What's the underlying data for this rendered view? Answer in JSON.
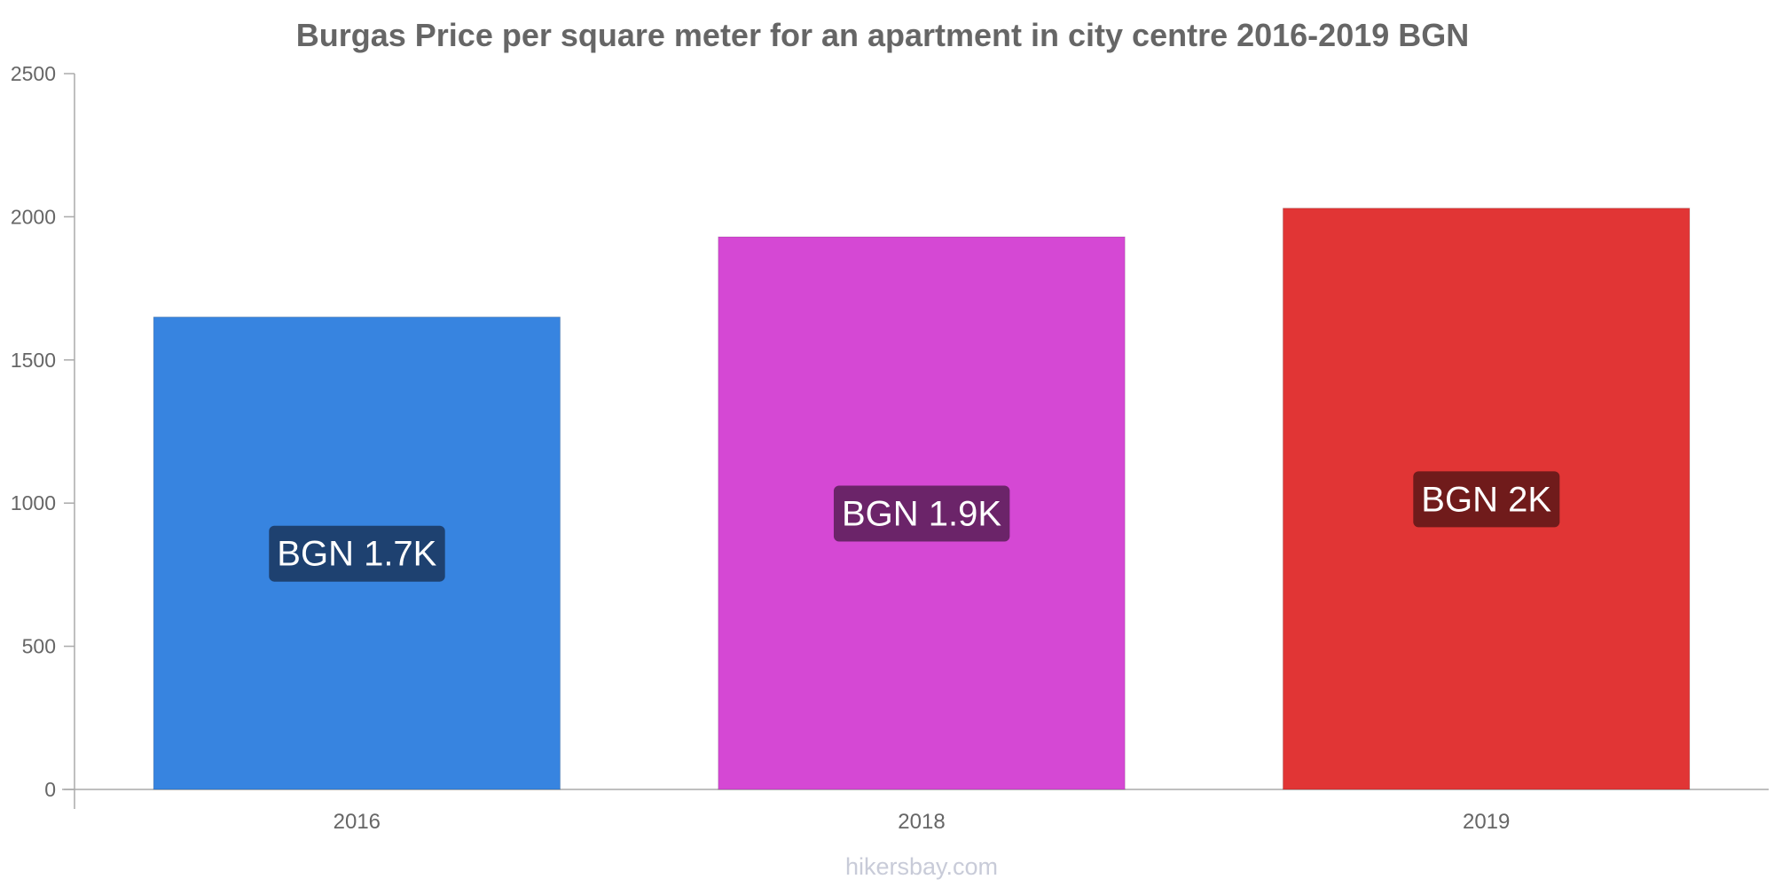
{
  "chart_data": {
    "type": "bar",
    "title": "Burgas Price per square meter for an apartment in city centre 2016-2019 BGN",
    "categories": [
      "2016",
      "2018",
      "2019"
    ],
    "values": [
      1650,
      1930,
      2030
    ],
    "data_labels": [
      "BGN 1.7K",
      "BGN 1.9K",
      "BGN 2K"
    ],
    "bar_colors": [
      "#3784e0",
      "#d548d4",
      "#e13535"
    ],
    "label_bg_colors": [
      "#1e4170",
      "#6b2469",
      "#701b1b"
    ],
    "ylim": [
      0,
      2500
    ],
    "yticks": [
      "0",
      "500",
      "1000",
      "1500",
      "2000",
      "2500"
    ],
    "xlabel": "",
    "ylabel": "",
    "grid": false,
    "legend": "none"
  },
  "footer": {
    "source": "hikersbay.com"
  }
}
